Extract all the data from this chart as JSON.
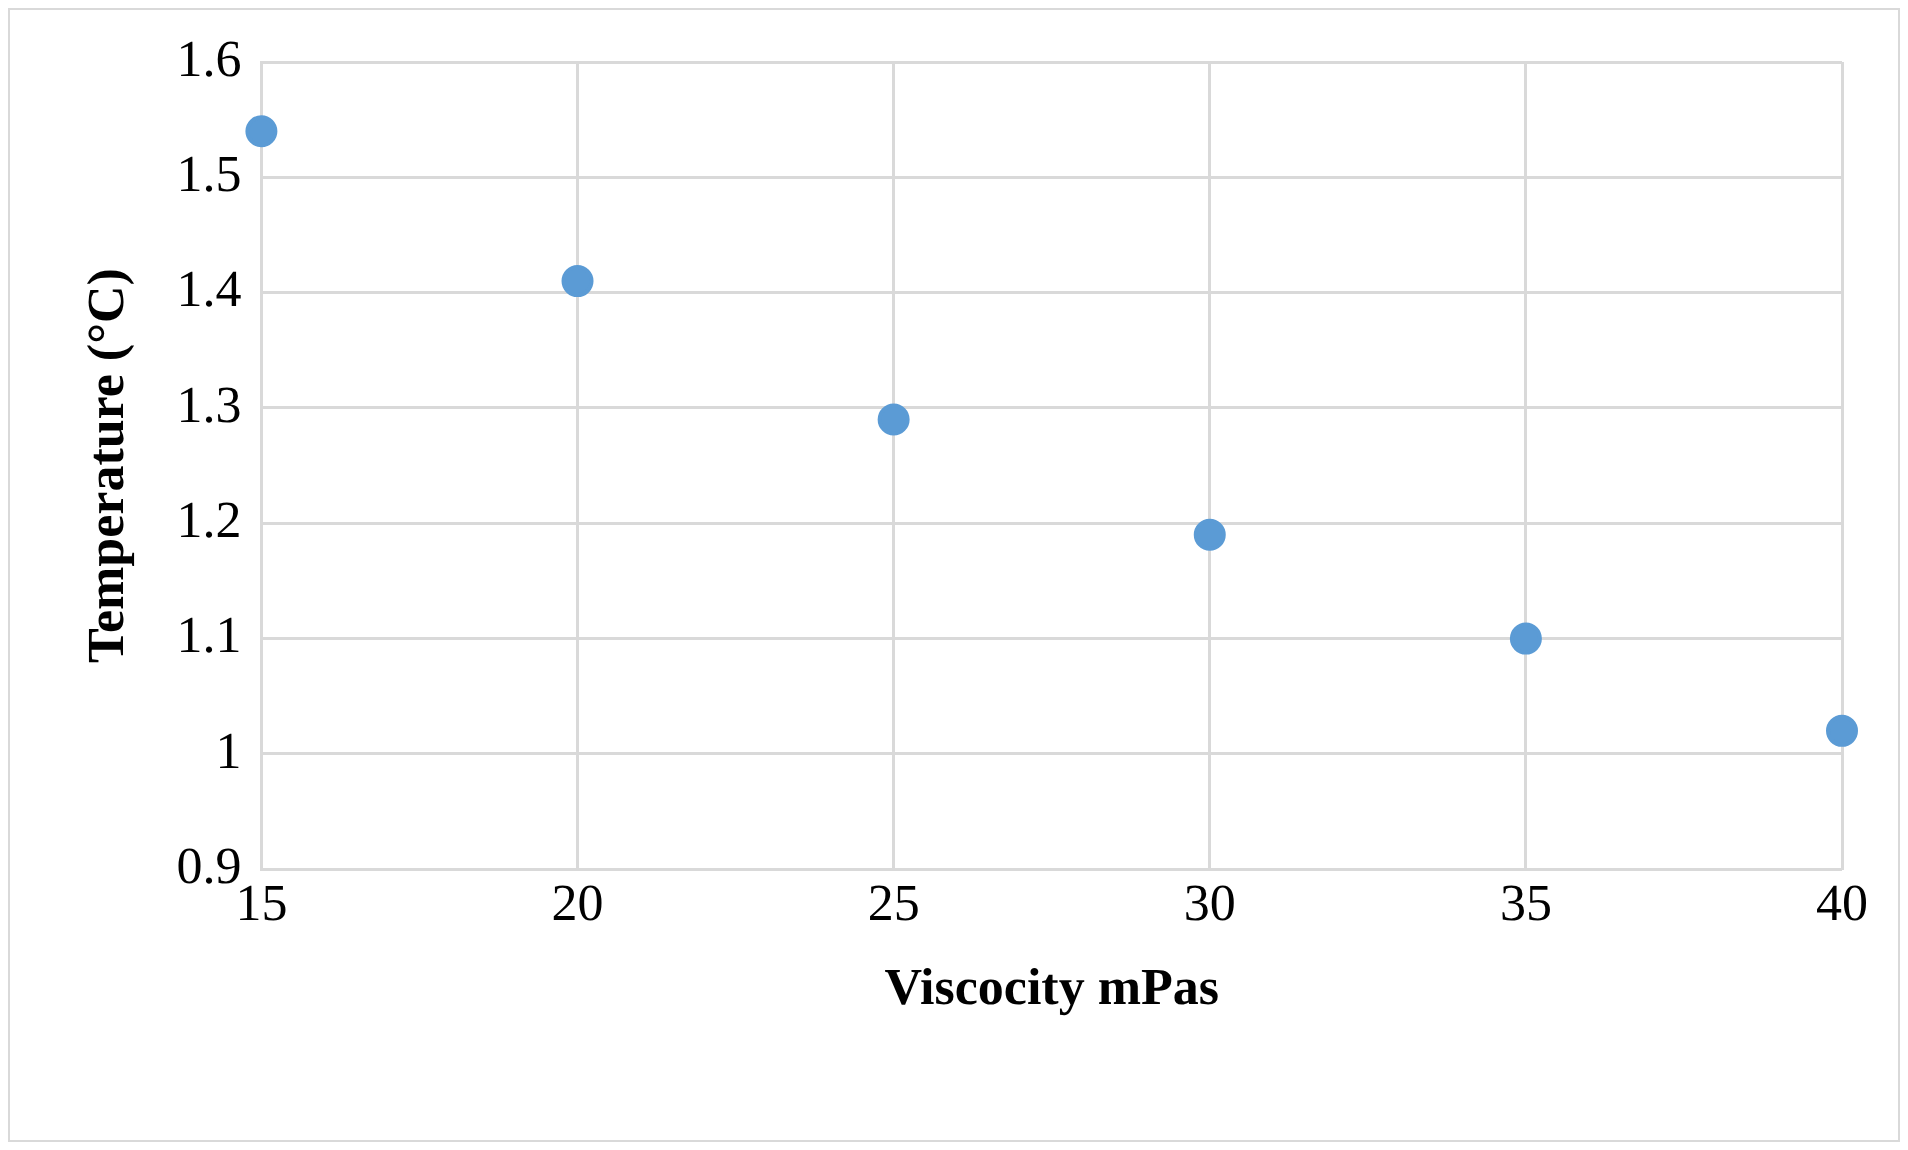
{
  "chart_data": {
    "type": "scatter",
    "xlabel": "Viscocity mPas",
    "ylabel": "Temperature (°C)",
    "x": [
      15,
      20,
      25,
      30,
      35,
      40
    ],
    "series": [
      {
        "color": "#5b9bd5",
        "values": [
          1.54,
          1.41,
          1.29,
          1.19,
          1.1,
          1.02
        ]
      }
    ],
    "xlim": [
      15,
      40
    ],
    "xticks": [
      15,
      20,
      25,
      30,
      35,
      40
    ],
    "ylim": [
      0.9,
      1.6
    ],
    "yticks": [
      0.9,
      1,
      1.1,
      1.2,
      1.3,
      1.4,
      1.5,
      1.6
    ],
    "grid": true,
    "legend": false,
    "marker": "circle"
  }
}
